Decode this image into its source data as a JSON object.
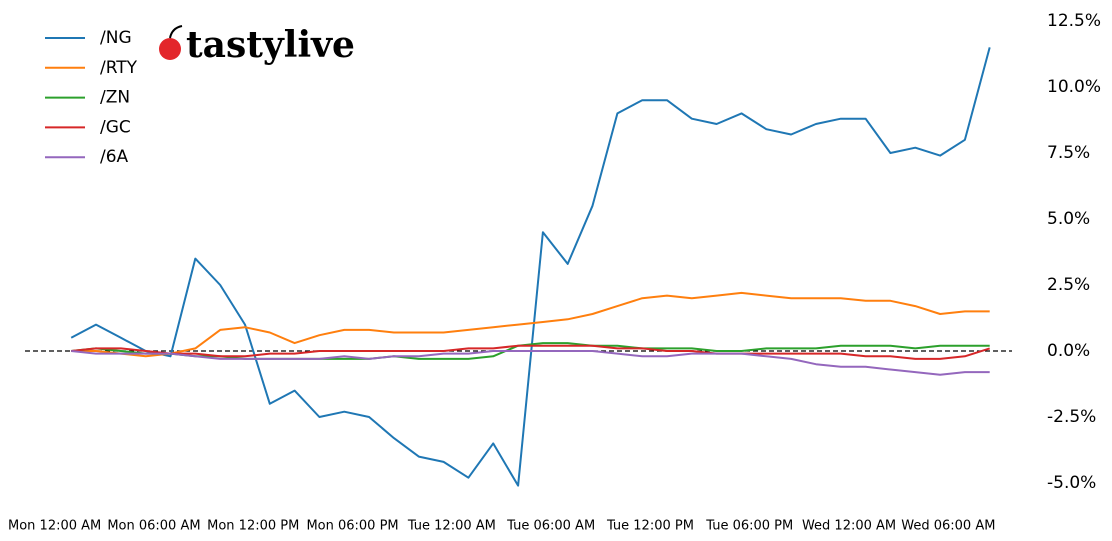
{
  "chart_data": {
    "type": "line",
    "logo": "tastylive",
    "x": [
      1,
      2.5,
      4,
      5.5,
      7,
      8.5,
      10,
      11.5,
      13,
      14.5,
      16,
      17.5,
      19,
      20.5,
      22,
      23.5,
      25,
      26.5,
      28,
      29.5,
      31,
      32.5,
      34,
      35.5,
      37,
      38.5,
      40,
      41.5,
      43,
      44.5,
      46,
      47.5,
      49,
      50.5,
      52,
      53.5,
      55,
      56.5
    ],
    "series": [
      {
        "name": "/NG",
        "color": "#1f77b4",
        "values": [
          0.5,
          1.0,
          0.5,
          0.0,
          -0.2,
          3.5,
          2.5,
          1.0,
          -2.0,
          -1.5,
          -2.5,
          -2.3,
          -2.5,
          -3.3,
          -4.0,
          -4.2,
          -4.8,
          -3.5,
          -5.1,
          4.5,
          3.3,
          5.5,
          9.0,
          9.5,
          9.5,
          8.8,
          8.6,
          9.0,
          8.4,
          8.2,
          8.6,
          8.8,
          8.8,
          7.5,
          7.7,
          7.4,
          8.0,
          11.5
        ]
      },
      {
        "name": "/RTY",
        "color": "#ff7f0e",
        "values": [
          0,
          0,
          -0.1,
          -0.2,
          -0.1,
          0.1,
          0.8,
          0.9,
          0.7,
          0.3,
          0.6,
          0.8,
          0.8,
          0.7,
          0.7,
          0.7,
          0.8,
          0.9,
          1.0,
          1.1,
          1.2,
          1.4,
          1.7,
          2.0,
          2.1,
          2.0,
          2.1,
          2.2,
          2.1,
          2.0,
          2.0,
          2.0,
          1.9,
          1.9,
          1.7,
          1.4,
          1.5,
          1.5
        ]
      },
      {
        "name": "/ZN",
        "color": "#2ca02c",
        "values": [
          0,
          0.1,
          0,
          -0.1,
          -0.1,
          -0.2,
          -0.2,
          -0.3,
          -0.3,
          -0.3,
          -0.3,
          -0.3,
          -0.3,
          -0.2,
          -0.3,
          -0.3,
          -0.3,
          -0.2,
          0.2,
          0.3,
          0.3,
          0.2,
          0.2,
          0.1,
          0.1,
          0.1,
          0,
          0,
          0.1,
          0.1,
          0.1,
          0.2,
          0.2,
          0.2,
          0.1,
          0.2,
          0.2,
          0.2
        ]
      },
      {
        "name": "/GC",
        "color": "#d62728",
        "values": [
          0,
          0.1,
          0.1,
          0,
          -0.1,
          -0.1,
          -0.2,
          -0.2,
          -0.1,
          -0.1,
          0,
          0,
          0,
          0,
          0,
          0,
          0.1,
          0.1,
          0.2,
          0.2,
          0.2,
          0.2,
          0.1,
          0.1,
          0,
          0,
          -0.1,
          -0.1,
          -0.1,
          -0.1,
          -0.1,
          -0.1,
          -0.2,
          -0.2,
          -0.3,
          -0.3,
          -0.2,
          0.1
        ]
      },
      {
        "name": "/6A",
        "color": "#9467bd",
        "values": [
          0,
          -0.1,
          -0.1,
          -0.1,
          -0.1,
          -0.2,
          -0.3,
          -0.3,
          -0.3,
          -0.3,
          -0.3,
          -0.2,
          -0.3,
          -0.2,
          -0.2,
          -0.1,
          -0.1,
          0,
          0,
          0,
          0,
          0,
          -0.1,
          -0.2,
          -0.2,
          -0.1,
          -0.1,
          -0.1,
          -0.2,
          -0.3,
          -0.5,
          -0.6,
          -0.6,
          -0.7,
          -0.8,
          -0.9,
          -0.8,
          -0.8
        ]
      }
    ],
    "xlim": [
      -3,
      57
    ],
    "xticks": [
      {
        "value": 0,
        "label": "Mon 12:00 AM"
      },
      {
        "value": 6,
        "label": "Mon 06:00 AM"
      },
      {
        "value": 12,
        "label": "Mon 12:00 PM"
      },
      {
        "value": 18,
        "label": "Mon 06:00 PM"
      },
      {
        "value": 24,
        "label": "Tue 12:00 AM"
      },
      {
        "value": 30,
        "label": "Tue 06:00 AM"
      },
      {
        "value": 36,
        "label": "Tue 12:00 PM"
      },
      {
        "value": 42,
        "label": "Tue 06:00 PM"
      },
      {
        "value": 48,
        "label": "Wed 12:00 AM"
      },
      {
        "value": 54,
        "label": "Wed 06:00 AM"
      }
    ],
    "ylim": [
      -6,
      12.5
    ],
    "yticks": [
      {
        "value": -5,
        "label": "-5.0%"
      },
      {
        "value": -2.5,
        "label": "-2.5%"
      },
      {
        "value": 0,
        "label": "0.0%"
      },
      {
        "value": 2.5,
        "label": "2.5%"
      },
      {
        "value": 5,
        "label": "5.0%"
      },
      {
        "value": 7.5,
        "label": "7.5%"
      },
      {
        "value": 10,
        "label": "10.0%"
      },
      {
        "value": 12.5,
        "label": "12.5%"
      }
    ],
    "hline": 0,
    "legend": "upper-left"
  }
}
